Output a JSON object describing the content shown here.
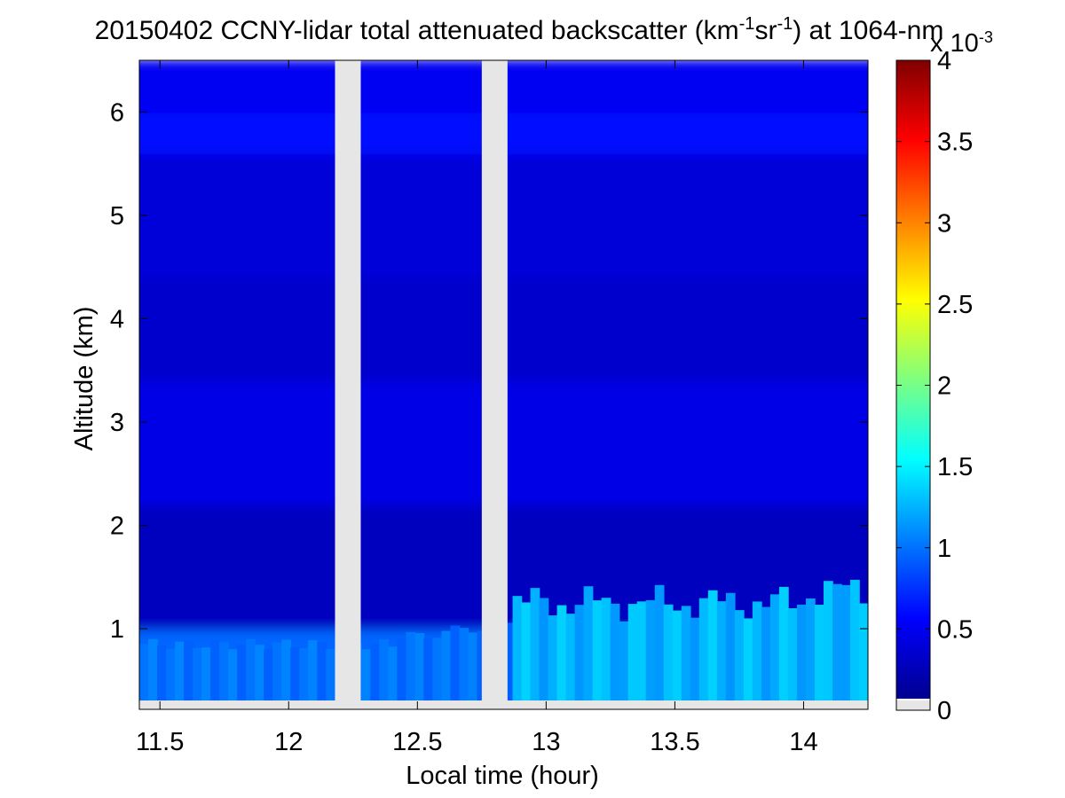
{
  "chart_data": {
    "type": "heatmap",
    "title": {
      "prefix": "20150402 CCNY-lidar total attenuated backscatter (km",
      "sup1": "-1",
      "mid": "sr",
      "sup2": "-1",
      "suffix": ") at 1064-nm"
    },
    "xlabel": "Local time (hour)",
    "ylabel": "Altitude (km)",
    "xlim": [
      11.42,
      14.25
    ],
    "ylim": [
      0.22,
      6.5
    ],
    "x_ticks": [
      11.5,
      12,
      12.5,
      13,
      13.5,
      14
    ],
    "x_tick_labels": [
      "11.5",
      "12",
      "12.5",
      "13",
      "13.5",
      "14"
    ],
    "y_ticks": [
      1,
      2,
      3,
      4,
      5,
      6
    ],
    "y_tick_labels": [
      "1",
      "2",
      "3",
      "4",
      "5",
      "6"
    ],
    "data_gaps_hours": [
      [
        12.18,
        12.28
      ],
      [
        12.75,
        12.85
      ]
    ],
    "gap_color": "#e6e6e6",
    "colorbar": {
      "colormap": "jet",
      "range": [
        0,
        4
      ],
      "ticks": [
        0,
        0.5,
        1,
        1.5,
        2,
        2.5,
        3,
        3.5,
        4
      ],
      "tick_labels": [
        "0",
        "0.5",
        "1",
        "1.5",
        "2",
        "2.5",
        "3",
        "3.5",
        "4"
      ],
      "multiplier_base": "x 10",
      "multiplier_exp": "-3",
      "zero_color": "#e6e6e6"
    },
    "layers": [
      {
        "altitude_km": [
          0.22,
          0.3
        ],
        "value": 0.15
      },
      {
        "altitude_km": [
          0.3,
          1.0
        ],
        "value": 0.9,
        "note": "boundary layer; top ~0.85 km before 12.5 h, rising to ~1.3 km after 13 h with values ~1.2"
      },
      {
        "altitude_km": [
          1.0,
          2.2
        ],
        "value": 0.25
      },
      {
        "altitude_km": [
          2.2,
          3.4
        ],
        "value": 0.4
      },
      {
        "altitude_km": [
          3.4,
          4.4
        ],
        "value": 0.3
      },
      {
        "altitude_km": [
          4.4,
          5.6
        ],
        "value": 0.35
      },
      {
        "altitude_km": [
          5.6,
          6.0
        ],
        "value": 0.55
      },
      {
        "altitude_km": [
          6.0,
          6.5
        ],
        "value": 0.45
      }
    ]
  }
}
